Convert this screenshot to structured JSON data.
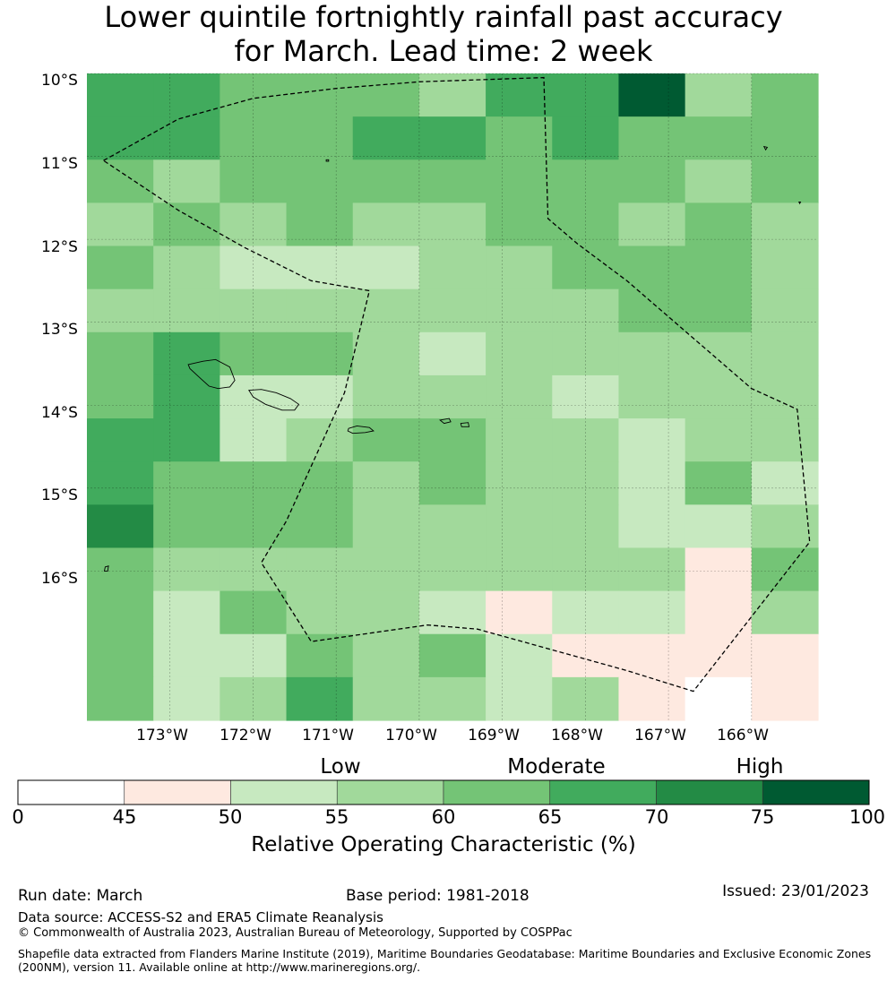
{
  "title": {
    "line1": "Lower quintile fortnightly rainfall past accuracy",
    "line2": "for March. Lead time: 2 week"
  },
  "map": {
    "lon_range": [
      -174.0,
      -165.2
    ],
    "lat_range": [
      -17.8,
      -10.0
    ],
    "cell_size_deg": 0.84,
    "lat_labels": [
      "10°S",
      "11°S",
      "12°S",
      "13°S",
      "14°S",
      "15°S",
      "16°S"
    ],
    "lon_labels": [
      "173°W",
      "172°W",
      "171°W",
      "170°W",
      "169°W",
      "168°W",
      "167°W",
      "166°W"
    ],
    "grid_classes": [
      [
        5,
        5,
        4,
        4,
        4,
        3,
        5,
        5,
        7,
        3,
        4
      ],
      [
        5,
        5,
        4,
        4,
        5,
        5,
        4,
        5,
        4,
        4,
        4
      ],
      [
        4,
        3,
        4,
        4,
        4,
        4,
        4,
        4,
        4,
        3,
        4
      ],
      [
        3,
        4,
        3,
        4,
        3,
        3,
        4,
        4,
        3,
        4,
        3
      ],
      [
        4,
        3,
        2,
        2,
        2,
        3,
        3,
        4,
        4,
        4,
        3
      ],
      [
        3,
        3,
        3,
        3,
        3,
        3,
        3,
        3,
        4,
        4,
        3
      ],
      [
        4,
        5,
        4,
        4,
        3,
        2,
        3,
        3,
        3,
        3,
        3
      ],
      [
        4,
        5,
        2,
        2,
        3,
        3,
        3,
        2,
        3,
        3,
        3
      ],
      [
        5,
        5,
        2,
        3,
        4,
        4,
        3,
        3,
        2,
        3,
        3
      ],
      [
        5,
        4,
        4,
        4,
        3,
        4,
        3,
        3,
        2,
        4,
        2
      ],
      [
        6,
        4,
        4,
        4,
        3,
        3,
        3,
        3,
        2,
        2,
        3
      ],
      [
        4,
        3,
        3,
        3,
        3,
        3,
        3,
        3,
        3,
        1,
        4
      ],
      [
        4,
        2,
        4,
        3,
        3,
        2,
        1,
        2,
        2,
        1,
        3
      ],
      [
        4,
        2,
        2,
        4,
        3,
        4,
        2,
        1,
        1,
        1,
        1
      ],
      [
        4,
        2,
        3,
        5,
        3,
        3,
        2,
        3,
        1,
        0,
        1
      ]
    ],
    "eez_boundary": [
      [
        -173.8,
        -11.05
      ],
      [
        -172.9,
        -10.55
      ],
      [
        -172.0,
        -10.3
      ],
      [
        -171.0,
        -10.18
      ],
      [
        -170.0,
        -10.1
      ],
      [
        -168.5,
        -10.05
      ],
      [
        -168.45,
        -11.75
      ],
      [
        -168.1,
        -12.05
      ],
      [
        -167.5,
        -12.5
      ],
      [
        -166.0,
        -13.8
      ],
      [
        -165.45,
        -14.05
      ],
      [
        -165.3,
        -15.65
      ],
      [
        -166.7,
        -17.45
      ],
      [
        -167.5,
        -17.2
      ],
      [
        -169.3,
        -16.7
      ],
      [
        -169.9,
        -16.65
      ],
      [
        -171.3,
        -16.85
      ],
      [
        -171.9,
        -15.9
      ],
      [
        -171.6,
        -15.4
      ],
      [
        -170.9,
        -13.85
      ],
      [
        -170.6,
        -12.62
      ],
      [
        -171.3,
        -12.5
      ],
      [
        -172.1,
        -12.1
      ],
      [
        -172.9,
        -11.65
      ]
    ],
    "islands": [
      [
        [
          -172.78,
          -13.51
        ],
        [
          -172.6,
          -13.47
        ],
        [
          -172.45,
          -13.45
        ],
        [
          -172.28,
          -13.54
        ],
        [
          -172.22,
          -13.7
        ],
        [
          -172.28,
          -13.78
        ],
        [
          -172.42,
          -13.8
        ],
        [
          -172.53,
          -13.77
        ],
        [
          -172.63,
          -13.68
        ],
        [
          -172.76,
          -13.56
        ]
      ],
      [
        [
          -172.05,
          -13.82
        ],
        [
          -171.9,
          -13.81
        ],
        [
          -171.72,
          -13.85
        ],
        [
          -171.55,
          -13.92
        ],
        [
          -171.45,
          -13.99
        ],
        [
          -171.5,
          -14.06
        ],
        [
          -171.65,
          -14.06
        ],
        [
          -171.85,
          -13.99
        ],
        [
          -172.0,
          -13.9
        ]
      ],
      [
        [
          -170.85,
          -14.28
        ],
        [
          -170.75,
          -14.25
        ],
        [
          -170.6,
          -14.27
        ],
        [
          -170.55,
          -14.31
        ],
        [
          -170.65,
          -14.33
        ],
        [
          -170.8,
          -14.34
        ],
        [
          -170.86,
          -14.31
        ]
      ],
      [
        [
          -169.75,
          -14.18
        ],
        [
          -169.64,
          -14.16
        ],
        [
          -169.62,
          -14.2
        ],
        [
          -169.7,
          -14.22
        ]
      ],
      [
        [
          -169.5,
          -14.22
        ],
        [
          -169.41,
          -14.21
        ],
        [
          -169.4,
          -14.26
        ],
        [
          -169.49,
          -14.26
        ]
      ],
      [
        [
          -173.78,
          -15.95
        ],
        [
          -173.74,
          -15.94
        ],
        [
          -173.75,
          -16.0
        ],
        [
          -173.79,
          -16.0
        ]
      ],
      [
        [
          -171.12,
          -11.04
        ],
        [
          -171.09,
          -11.04
        ],
        [
          -171.09,
          -11.06
        ],
        [
          -171.12,
          -11.06
        ]
      ],
      [
        [
          -165.85,
          -10.88
        ],
        [
          -165.81,
          -10.89
        ],
        [
          -165.83,
          -10.92
        ]
      ],
      [
        [
          -165.43,
          -11.55
        ],
        [
          -165.41,
          -11.55
        ],
        [
          -165.42,
          -11.57
        ]
      ]
    ]
  },
  "colorbar": {
    "ticks": [
      "0",
      "45",
      "50",
      "55",
      "60",
      "65",
      "70",
      "75",
      "100"
    ],
    "colors": [
      "#ffffff",
      "#fee9e0",
      "#c7e9c0",
      "#a1d99b",
      "#74c476",
      "#41ab5d",
      "#238b45",
      "#005a32"
    ],
    "category_labels": [
      "Low",
      "Moderate",
      "High"
    ],
    "title": "Relative Operating Characteristic (%)"
  },
  "footer": {
    "run_date": "Run date: March",
    "base_period": "Base period: 1981-2018",
    "issued": "Issued: 23/01/2023",
    "data_source": "Data source: ACCESS-S2 and ERA5 Climate Reanalysis",
    "copyright": "© Commonwealth of Australia 2023, Australian Bureau of Meteorology, Supported by COSPPac",
    "shapefile_line1": "Shapefile data extracted from Flanders Marine Institute (2019), Maritime Boundaries Geodatabase: Maritime Boundaries and Exclusive Economic Zones",
    "shapefile_line2": "(200NM), version 11. Available online at http://www.marineregions.org/."
  }
}
